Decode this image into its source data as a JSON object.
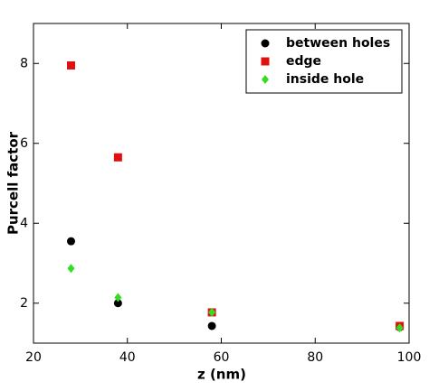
{
  "chart_data": {
    "type": "scatter",
    "x_label": "z (nm)",
    "y_label": "Purcell factor",
    "x": [
      28,
      38,
      58,
      98
    ],
    "series": [
      {
        "name": "between holes",
        "color": "#000000",
        "marker": "circle",
        "values": [
          3.55,
          2.0,
          1.43,
          1.4
        ]
      },
      {
        "name": "edge",
        "color": "#e01010",
        "marker": "square",
        "values": [
          7.95,
          5.65,
          1.77,
          1.43
        ]
      },
      {
        "name": "inside hole",
        "color": "#33dd22",
        "marker": "diamond",
        "values": [
          2.87,
          2.14,
          1.77,
          1.38
        ]
      }
    ],
    "xlim": [
      20,
      100
    ],
    "xticks": [
      20,
      40,
      60,
      80,
      100
    ],
    "ylim": [
      1,
      9
    ],
    "yticks": [
      2,
      4,
      6,
      8
    ],
    "legend": "upper right",
    "grid": false
  }
}
